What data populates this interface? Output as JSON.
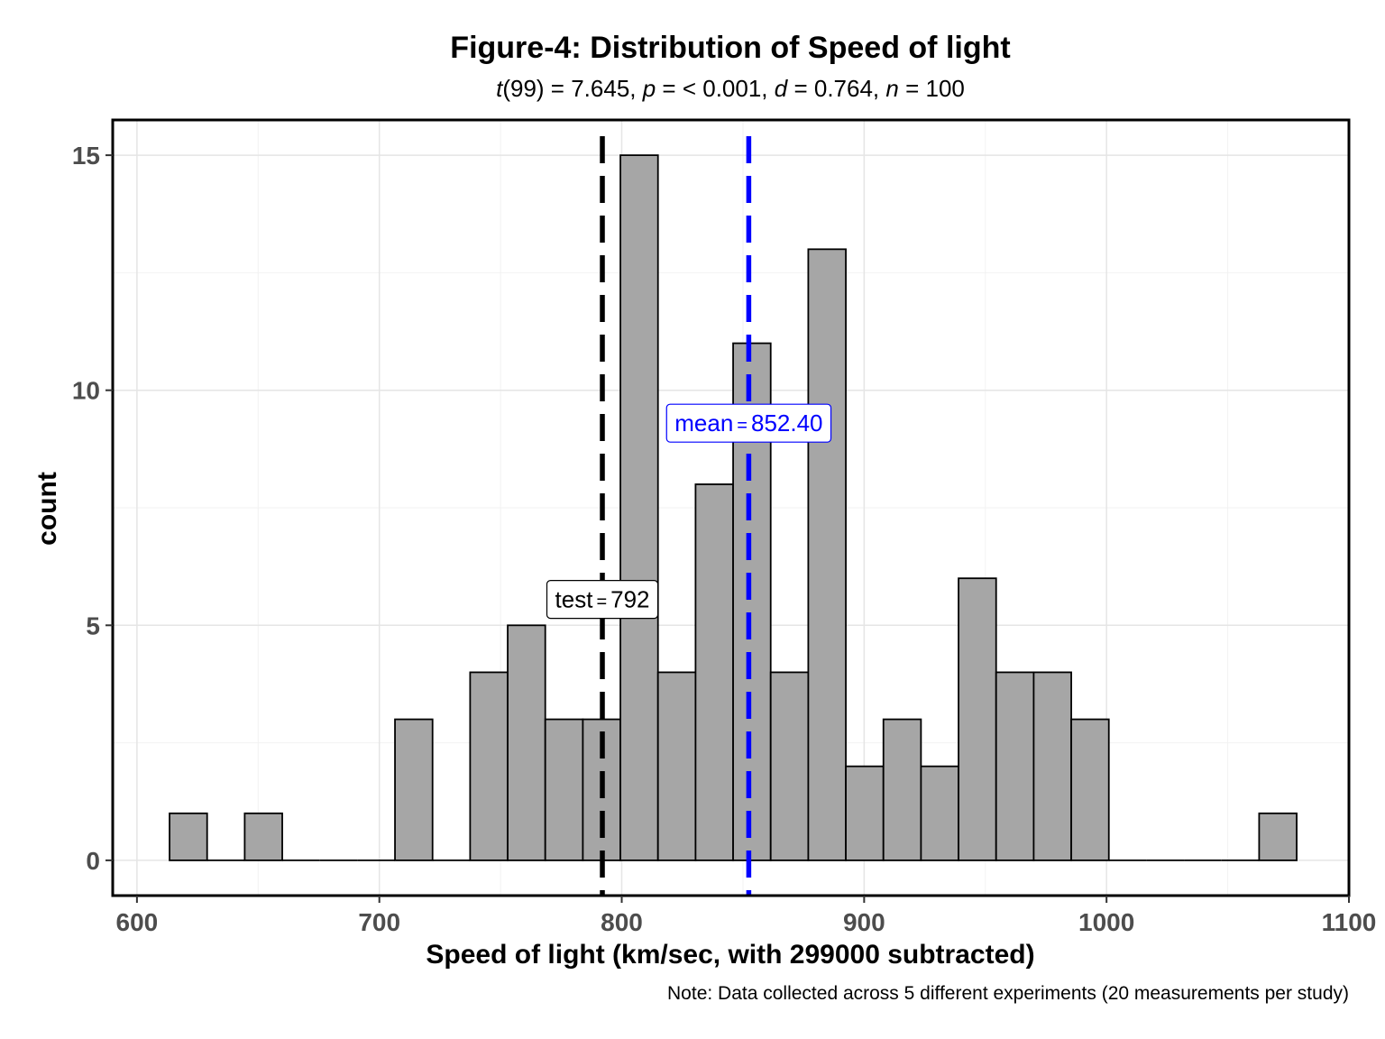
{
  "chart_data": {
    "type": "bar",
    "title": "Figure-4: Distribution of Speed of light",
    "subtitle": {
      "parts": [
        {
          "text": "t",
          "italic": true
        },
        {
          "text": "(99) = 7.645, ",
          "italic": false
        },
        {
          "text": "p",
          "italic": true
        },
        {
          "text": " = < 0.001, ",
          "italic": false
        },
        {
          "text": "d",
          "italic": true
        },
        {
          "text": " = 0.764, ",
          "italic": false
        },
        {
          "text": "n",
          "italic": true
        },
        {
          "text": " = 100",
          "italic": false
        }
      ]
    },
    "xlabel": "Speed of light (km/sec, with 299000 subtracted)",
    "ylabel": "count",
    "caption": "Note: Data collected across 5 different experiments (20 measurements per study)",
    "xlim": [
      590,
      1100
    ],
    "ylim": [
      -0.75,
      15.75
    ],
    "x_ticks": [
      600,
      700,
      800,
      900,
      1000,
      1100
    ],
    "y_ticks": [
      0,
      5,
      10,
      15
    ],
    "grid": true,
    "bin_width": 15.5,
    "bins": [
      {
        "center": 621.2,
        "count": 1
      },
      {
        "center": 636.7,
        "count": 0
      },
      {
        "center": 652.2,
        "count": 1
      },
      {
        "center": 667.7,
        "count": 0
      },
      {
        "center": 683.2,
        "count": 0
      },
      {
        "center": 698.7,
        "count": 0
      },
      {
        "center": 714.2,
        "count": 3
      },
      {
        "center": 729.7,
        "count": 0
      },
      {
        "center": 745.2,
        "count": 4
      },
      {
        "center": 760.7,
        "count": 5
      },
      {
        "center": 776.2,
        "count": 3
      },
      {
        "center": 791.7,
        "count": 3
      },
      {
        "center": 807.2,
        "count": 15
      },
      {
        "center": 822.7,
        "count": 4
      },
      {
        "center": 838.2,
        "count": 8
      },
      {
        "center": 853.7,
        "count": 11
      },
      {
        "center": 869.2,
        "count": 4
      },
      {
        "center": 884.7,
        "count": 13
      },
      {
        "center": 900.2,
        "count": 2
      },
      {
        "center": 915.7,
        "count": 3
      },
      {
        "center": 931.2,
        "count": 2
      },
      {
        "center": 946.7,
        "count": 6
      },
      {
        "center": 962.2,
        "count": 4
      },
      {
        "center": 977.7,
        "count": 4
      },
      {
        "center": 993.2,
        "count": 3
      },
      {
        "center": 1008.7,
        "count": 0
      },
      {
        "center": 1024.2,
        "count": 0
      },
      {
        "center": 1039.7,
        "count": 0
      },
      {
        "center": 1055.2,
        "count": 0
      },
      {
        "center": 1070.7,
        "count": 1
      }
    ],
    "bar_fill": "#a6a6a6",
    "bar_stroke": "#000000",
    "reference_lines": [
      {
        "name": "test",
        "label": "test",
        "equals": "=",
        "value_text": "792",
        "x": 792,
        "color": "#000000",
        "label_y": 5.55
      },
      {
        "name": "mean",
        "label": "mean",
        "equals": "=",
        "value_text": "852.40",
        "x": 852.4,
        "color": "#0000ff",
        "label_y": 9.3
      }
    ]
  }
}
